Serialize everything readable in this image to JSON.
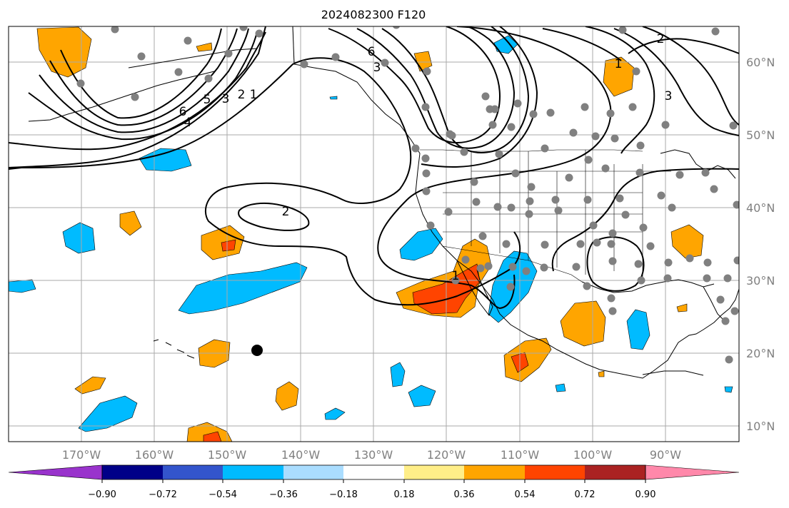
{
  "title": "2024082300 F120",
  "map": {
    "lon_range": [
      -180,
      -80
    ],
    "lat_range": [
      8,
      65
    ],
    "lon_ticks": [
      "170°W",
      "160°W",
      "150°W",
      "140°W",
      "130°W",
      "120°W",
      "110°W",
      "100°W",
      "90°W"
    ],
    "lat_ticks": [
      "60°N",
      "50°N",
      "40°N",
      "30°N",
      "20°N",
      "10°N"
    ],
    "colors": {
      "grid": "#aaaaaa",
      "coast": "#000000",
      "contour": "#000000",
      "station": "#808080"
    }
  },
  "contour_labels": [
    {
      "text": "6"
    },
    {
      "text": "5"
    },
    {
      "text": "4"
    },
    {
      "text": "3"
    },
    {
      "text": "2"
    },
    {
      "text": "1"
    },
    {
      "text": "6"
    },
    {
      "text": "3"
    },
    {
      "text": "2"
    },
    {
      "text": "1"
    },
    {
      "text": "1"
    },
    {
      "text": "3"
    },
    {
      "text": "2"
    }
  ],
  "colorbar": {
    "colors": [
      "#9933cc",
      "#000088",
      "#3355cc",
      "#00bbff",
      "#aaddff",
      "#ffffff",
      "#ffee88",
      "#ffa500",
      "#ff4400",
      "#aa2222",
      "#ff88aa"
    ],
    "tick_labels": [
      "−0.90",
      "−0.72",
      "−0.54",
      "−0.36",
      "−0.18",
      "0.18",
      "0.36",
      "0.54",
      "0.72",
      "0.90"
    ]
  }
}
